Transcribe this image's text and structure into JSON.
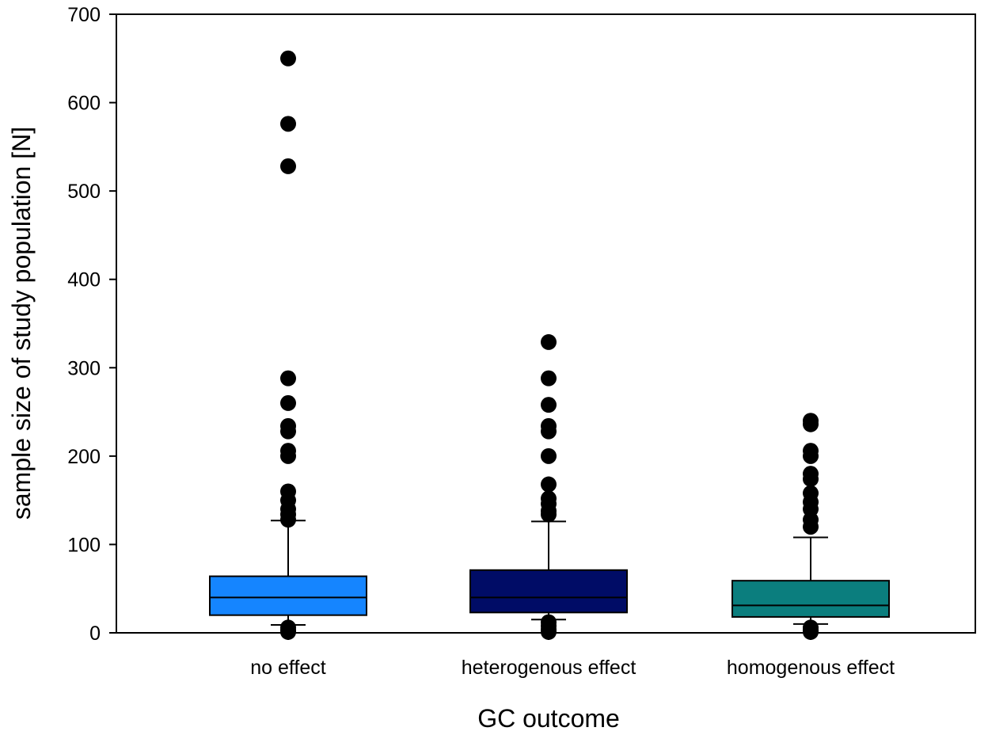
{
  "chart_data": {
    "type": "box",
    "title": "",
    "xlabel": "GC outcome",
    "ylabel": "sample size of study population [N]",
    "ylim": [
      0,
      700
    ],
    "yticks": [
      0,
      100,
      200,
      300,
      400,
      500,
      600,
      700
    ],
    "ytick_labels": [
      "0",
      "100",
      "200",
      "300",
      "400",
      "500",
      "600",
      "700"
    ],
    "grid": false,
    "categories": [
      "no effect",
      "heterogenous effect",
      "homogenous effect"
    ],
    "series": [
      {
        "category": "no effect",
        "color": "#1585FF",
        "whisker_low": 9,
        "q1": 20,
        "median": 40,
        "q3": 64,
        "whisker_high": 127,
        "outliers": [
          650,
          576,
          528,
          288,
          260,
          234,
          228,
          206,
          200,
          160,
          150,
          140,
          134,
          128,
          1,
          3,
          6
        ]
      },
      {
        "category": "heterogenous effect",
        "color": "#000C66",
        "whisker_low": 15,
        "q1": 23,
        "median": 40,
        "q3": 71,
        "whisker_high": 126,
        "outliers": [
          329,
          288,
          258,
          234,
          228,
          200,
          168,
          152,
          146,
          138,
          134,
          1,
          4,
          8,
          12
        ]
      },
      {
        "category": "homogenous effect",
        "color": "#0B7E7E",
        "whisker_low": 10,
        "q1": 18,
        "median": 31,
        "q3": 59,
        "whisker_high": 108,
        "outliers": [
          240,
          236,
          206,
          200,
          180,
          174,
          158,
          148,
          140,
          128,
          120,
          1,
          3,
          6
        ]
      }
    ]
  }
}
